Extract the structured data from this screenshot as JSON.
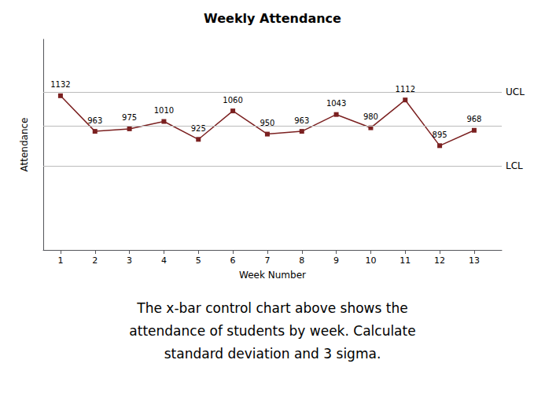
{
  "chart_data": {
    "type": "line",
    "title": "Weekly Attendance",
    "xlabel": "Week Number",
    "ylabel": "Attendance",
    "x": [
      1,
      2,
      3,
      4,
      5,
      6,
      7,
      8,
      9,
      10,
      11,
      12,
      13
    ],
    "values": [
      1132,
      963,
      975,
      1010,
      925,
      1060,
      950,
      963,
      1043,
      980,
      1112,
      895,
      968
    ],
    "color": "#7B2020",
    "marker": "square",
    "data_labels": true,
    "xlim": [
      0.5,
      13.8
    ],
    "xticks": [
      1,
      2,
      3,
      4,
      5,
      6,
      7,
      8,
      9,
      10,
      11,
      12,
      13
    ],
    "ylim": [
      400,
      1400
    ],
    "yticks": [],
    "tick_labels": "x",
    "grid": false,
    "reference_lines": [
      {
        "label": "UCL",
        "value": 1150,
        "color": "#bbbbbb"
      },
      {
        "label": "LCL",
        "value": 800,
        "color": "#bbbbbb"
      },
      {
        "value": 990,
        "color": "#bbbbbb"
      }
    ],
    "caption": "The x-bar control chart above shows the\nattendance of students by week. Calculate\nstandard deviation and 3 sigma."
  }
}
